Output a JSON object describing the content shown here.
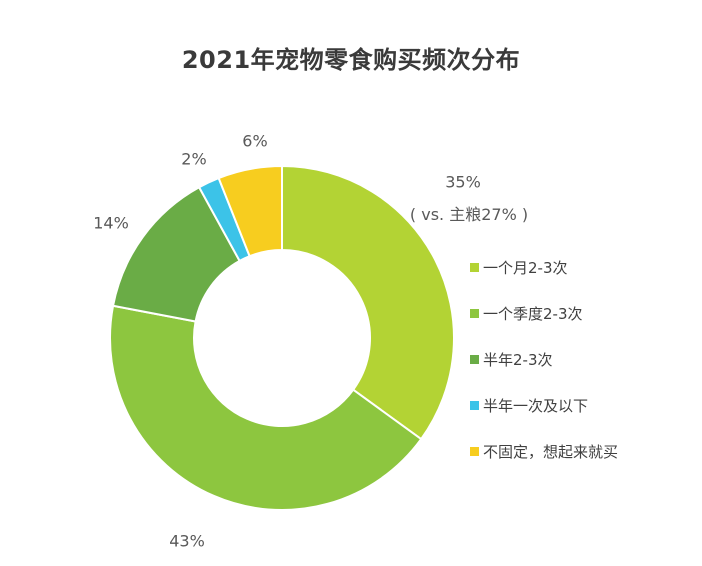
{
  "chart_data": {
    "type": "pie",
    "title": "2021年宠物零食购买频次分布",
    "categories": [
      "一个月2-3次",
      "一个季度2-3次",
      "半年2-3次",
      "半年一次及以下",
      "不固定，想起来就买"
    ],
    "values": [
      35,
      43,
      14,
      2,
      6
    ],
    "labels": [
      "35%",
      "43%",
      "14%",
      "2%",
      "6%"
    ],
    "colors": [
      "#b3d334",
      "#8dc63f",
      "#6aac46",
      "#3cc3e8",
      "#f7cd1f"
    ],
    "annotation": "( vs. 主粮27% )",
    "legend_position": "right",
    "donut": true
  }
}
